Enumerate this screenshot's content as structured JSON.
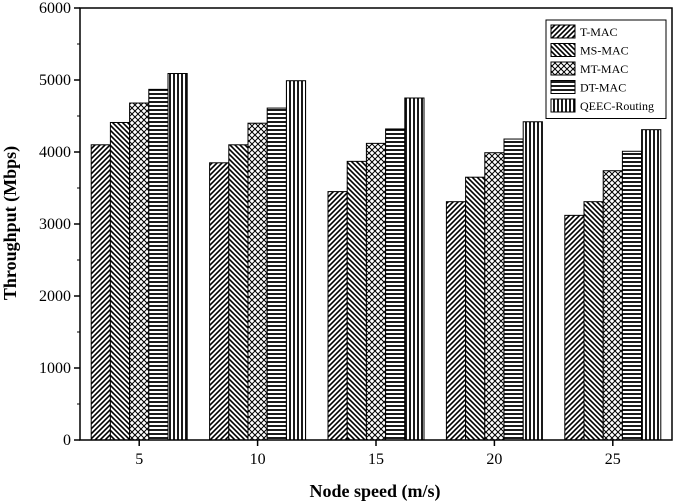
{
  "chart_data": {
    "type": "bar",
    "title": "",
    "xlabel": "Node speed (m/s)",
    "ylabel": "Throughput (Mbps)",
    "categories": [
      "5",
      "10",
      "15",
      "20",
      "25"
    ],
    "ylim": [
      0,
      6000
    ],
    "yticks": [
      0,
      1000,
      2000,
      3000,
      4000,
      5000,
      6000
    ],
    "grid": false,
    "legend_position": "top-right",
    "series": [
      {
        "name": "T-MAC",
        "pattern": "diagonal-forward",
        "values": [
          4100,
          3850,
          3450,
          3310,
          3120
        ]
      },
      {
        "name": "MS-MAC",
        "pattern": "diagonal-backward",
        "values": [
          4410,
          4100,
          3870,
          3650,
          3310
        ]
      },
      {
        "name": "MT-MAC",
        "pattern": "crosshatch",
        "values": [
          4680,
          4400,
          4120,
          3990,
          3740
        ]
      },
      {
        "name": "DT-MAC",
        "pattern": "horizontal",
        "values": [
          4870,
          4610,
          4320,
          4180,
          4010
        ]
      },
      {
        "name": "QEEC-Routing",
        "pattern": "vertical",
        "values": [
          5090,
          4990,
          4750,
          4420,
          4310
        ]
      }
    ]
  }
}
